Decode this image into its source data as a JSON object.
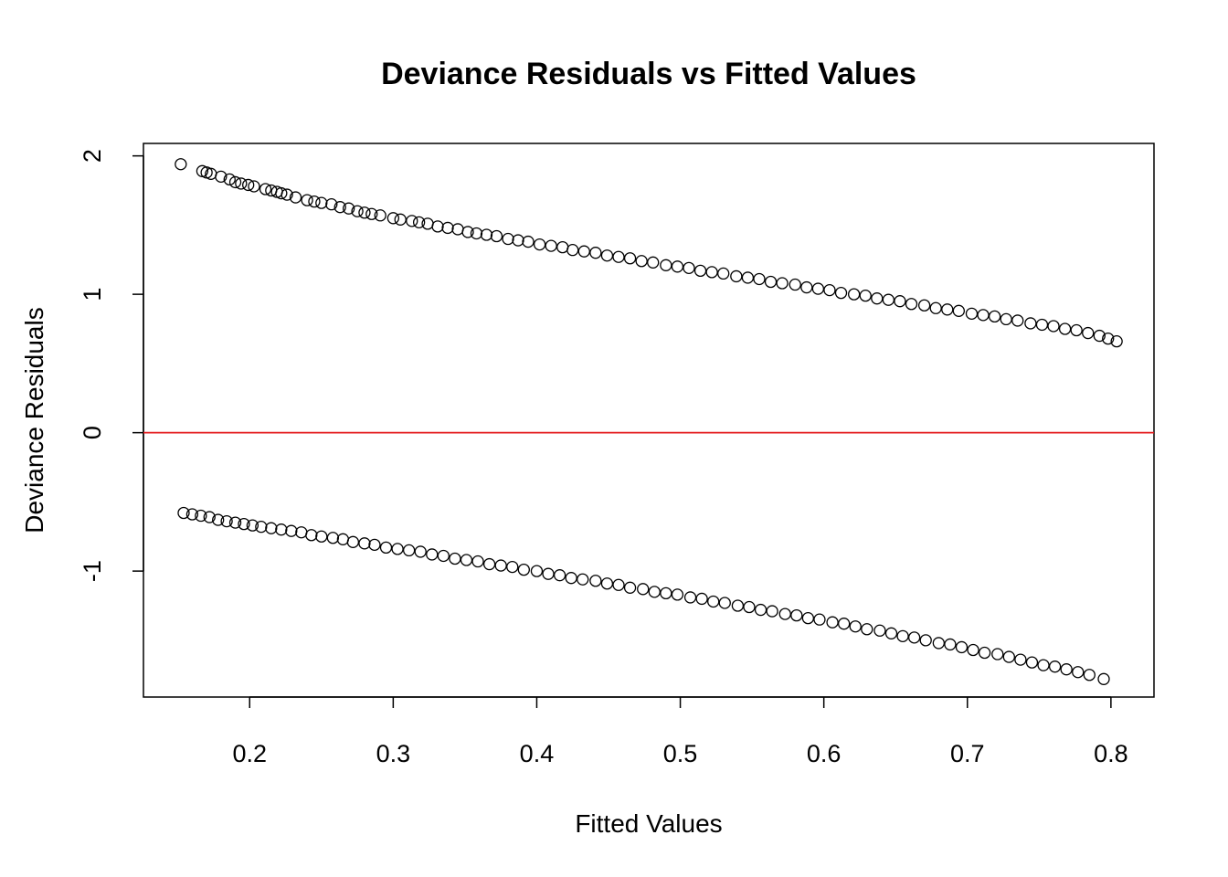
{
  "chart_data": {
    "type": "scatter",
    "title": "Deviance Residuals vs Fitted Values",
    "xlabel": "Fitted Values",
    "ylabel": "Deviance Residuals",
    "xlim": [
      0.126,
      0.83
    ],
    "ylim": [
      -1.91,
      2.09
    ],
    "xticks": [
      0.2,
      0.3,
      0.4,
      0.5,
      0.6,
      0.7,
      0.8
    ],
    "xtick_labels": [
      "0.2",
      "0.3",
      "0.4",
      "0.5",
      "0.6",
      "0.7",
      "0.8"
    ],
    "yticks": [
      -1,
      0,
      1,
      2
    ],
    "ytick_labels": [
      "-1",
      "0",
      "1",
      "2"
    ],
    "grid": false,
    "reference_line": {
      "y": 0,
      "color": "#e41a1c"
    },
    "point_marker": "open-circle",
    "series": [
      {
        "x": [
          0.152,
          0.167,
          0.17,
          0.173,
          0.18,
          0.186,
          0.19,
          0.194,
          0.199,
          0.203,
          0.211,
          0.215,
          0.219,
          0.222,
          0.226,
          0.232,
          0.24,
          0.245,
          0.25,
          0.257,
          0.263,
          0.269,
          0.275,
          0.28,
          0.285,
          0.291,
          0.3,
          0.305,
          0.313,
          0.318,
          0.324,
          0.331,
          0.338,
          0.345,
          0.352,
          0.358,
          0.365,
          0.372,
          0.38,
          0.387,
          0.394,
          0.402,
          0.41,
          0.418,
          0.425,
          0.433,
          0.441,
          0.449,
          0.457,
          0.465,
          0.473,
          0.481,
          0.49,
          0.498,
          0.506,
          0.514,
          0.522,
          0.53,
          0.539,
          0.547,
          0.555,
          0.563,
          0.571,
          0.58,
          0.588,
          0.596,
          0.604,
          0.612,
          0.621,
          0.629,
          0.637,
          0.645,
          0.653,
          0.661,
          0.67,
          0.678,
          0.686,
          0.694,
          0.703,
          0.711,
          0.719,
          0.727,
          0.735,
          0.744,
          0.752,
          0.76,
          0.768,
          0.776,
          0.784,
          0.792,
          0.798,
          0.804
        ],
        "y": [
          1.94,
          1.89,
          1.88,
          1.87,
          1.85,
          1.83,
          1.81,
          1.8,
          1.79,
          1.78,
          1.76,
          1.75,
          1.74,
          1.73,
          1.72,
          1.7,
          1.68,
          1.67,
          1.66,
          1.65,
          1.63,
          1.62,
          1.6,
          1.59,
          1.58,
          1.57,
          1.55,
          1.54,
          1.53,
          1.52,
          1.51,
          1.49,
          1.48,
          1.47,
          1.45,
          1.44,
          1.43,
          1.42,
          1.4,
          1.39,
          1.38,
          1.36,
          1.35,
          1.34,
          1.32,
          1.31,
          1.3,
          1.28,
          1.27,
          1.26,
          1.24,
          1.23,
          1.21,
          1.2,
          1.19,
          1.17,
          1.16,
          1.15,
          1.13,
          1.12,
          1.11,
          1.09,
          1.08,
          1.07,
          1.05,
          1.04,
          1.03,
          1.01,
          1.0,
          0.99,
          0.97,
          0.96,
          0.95,
          0.93,
          0.92,
          0.9,
          0.89,
          0.88,
          0.86,
          0.85,
          0.84,
          0.82,
          0.81,
          0.79,
          0.78,
          0.77,
          0.75,
          0.74,
          0.72,
          0.7,
          0.68,
          0.66
        ]
      },
      {
        "x": [
          0.154,
          0.16,
          0.166,
          0.172,
          0.178,
          0.184,
          0.19,
          0.196,
          0.202,
          0.208,
          0.215,
          0.222,
          0.229,
          0.236,
          0.243,
          0.25,
          0.258,
          0.265,
          0.272,
          0.28,
          0.287,
          0.295,
          0.303,
          0.311,
          0.319,
          0.327,
          0.335,
          0.343,
          0.351,
          0.359,
          0.367,
          0.375,
          0.383,
          0.391,
          0.4,
          0.408,
          0.416,
          0.424,
          0.432,
          0.441,
          0.449,
          0.457,
          0.465,
          0.474,
          0.482,
          0.49,
          0.498,
          0.507,
          0.515,
          0.523,
          0.531,
          0.54,
          0.548,
          0.556,
          0.564,
          0.573,
          0.581,
          0.589,
          0.597,
          0.606,
          0.614,
          0.622,
          0.63,
          0.639,
          0.647,
          0.655,
          0.663,
          0.671,
          0.68,
          0.688,
          0.696,
          0.704,
          0.712,
          0.721,
          0.729,
          0.737,
          0.745,
          0.753,
          0.761,
          0.769,
          0.777,
          0.785,
          0.795
        ],
        "y": [
          -0.58,
          -0.59,
          -0.6,
          -0.61,
          -0.63,
          -0.64,
          -0.65,
          -0.66,
          -0.67,
          -0.68,
          -0.69,
          -0.7,
          -0.71,
          -0.72,
          -0.74,
          -0.75,
          -0.76,
          -0.77,
          -0.79,
          -0.8,
          -0.81,
          -0.83,
          -0.84,
          -0.85,
          -0.86,
          -0.88,
          -0.89,
          -0.91,
          -0.92,
          -0.93,
          -0.95,
          -0.96,
          -0.97,
          -0.99,
          -1.0,
          -1.02,
          -1.03,
          -1.05,
          -1.06,
          -1.07,
          -1.09,
          -1.1,
          -1.12,
          -1.13,
          -1.15,
          -1.16,
          -1.17,
          -1.19,
          -1.2,
          -1.22,
          -1.23,
          -1.25,
          -1.26,
          -1.28,
          -1.29,
          -1.31,
          -1.32,
          -1.34,
          -1.35,
          -1.37,
          -1.38,
          -1.4,
          -1.42,
          -1.43,
          -1.45,
          -1.47,
          -1.48,
          -1.5,
          -1.52,
          -1.53,
          -1.55,
          -1.57,
          -1.59,
          -1.6,
          -1.62,
          -1.64,
          -1.66,
          -1.68,
          -1.69,
          -1.71,
          -1.73,
          -1.75,
          -1.78
        ]
      }
    ]
  }
}
